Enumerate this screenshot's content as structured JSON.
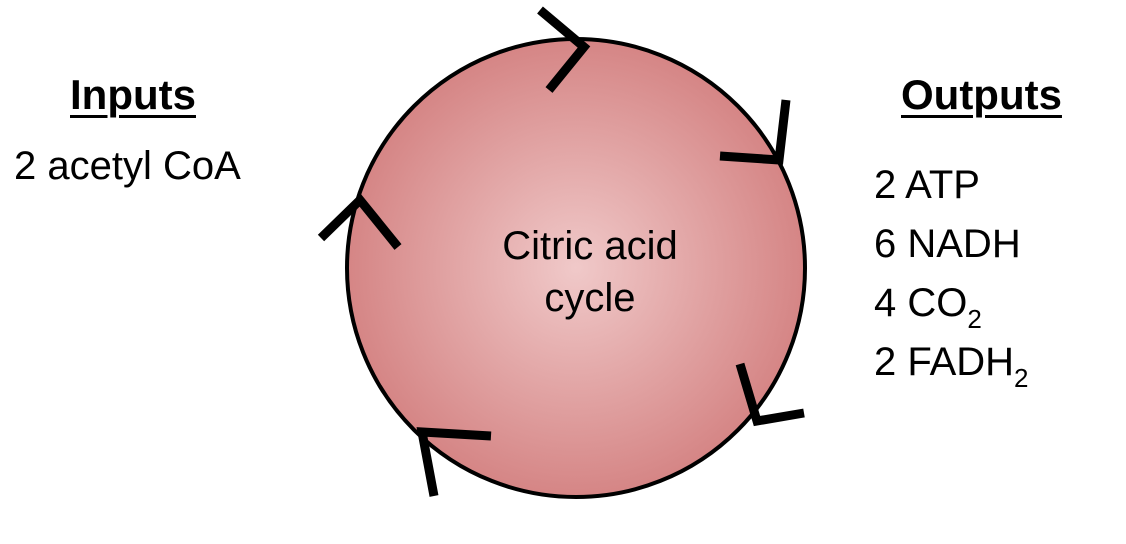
{
  "inputs": {
    "heading": "Inputs",
    "items": [
      "2 acetyl CoA"
    ]
  },
  "outputs": {
    "heading": "Outputs",
    "items": [
      {
        "text": "2 ATP",
        "sub": ""
      },
      {
        "text": "6 NADH",
        "sub": ""
      },
      {
        "text": "4 CO",
        "sub": "2"
      },
      {
        "text": "2 FADH",
        "sub": "2"
      }
    ]
  },
  "cycle": {
    "label_line1": "Citric acid",
    "label_line2": "cycle"
  },
  "colors": {
    "circle_center": "#f0c9c9",
    "circle_edge": "#d58585",
    "stroke": "#000000"
  }
}
